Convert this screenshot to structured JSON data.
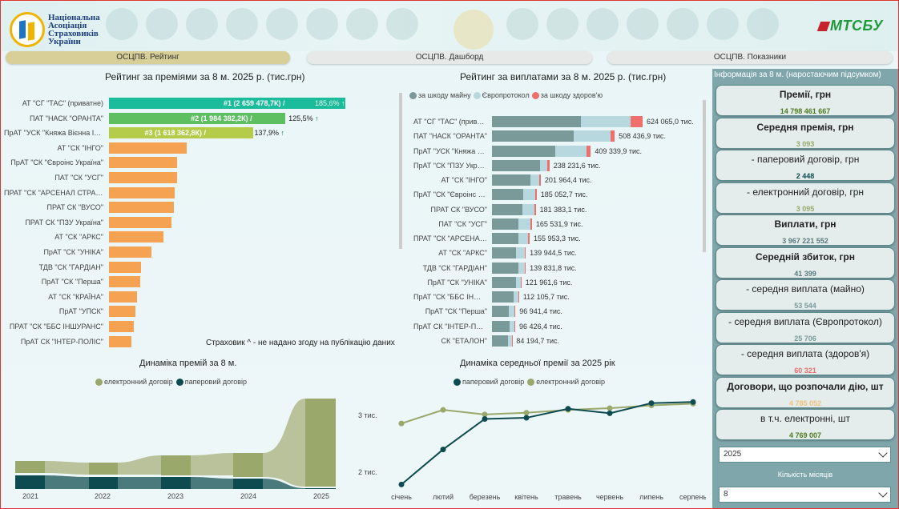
{
  "header": {
    "logo_text": [
      "Національна",
      "Асоціація",
      "Страховиків",
      "України"
    ],
    "brand_right": "МТСБУ"
  },
  "tabs": [
    {
      "label": "ОСЦПВ. Рейтинг",
      "active": true
    },
    {
      "label": "ОСЦПВ. Дашборд",
      "active": false
    },
    {
      "label": "ОСЦПВ. Показники",
      "active": false
    }
  ],
  "premiums_chart": {
    "title": "Рейтинг за преміями за 8 м.  2025 р. (тис.грн)",
    "items": [
      {
        "name": "АТ \"СГ \"ТАС\" (приватне)",
        "value": 2659478.7,
        "label": "#1 (2 659 478,7К) /",
        "pct": "185,6%",
        "color": "#1abc9c"
      },
      {
        "name": "ПАТ \"НАСК \"ОРАНТА\"",
        "value": 1984382.2,
        "label": "#2 (1 984 382,2К) /",
        "pct": "125,5%",
        "color": "#5dbf60"
      },
      {
        "name": "ПрАТ \"УСК \"Княжа Вієнна Іншуранс Груп\"",
        "value": 1618362.8,
        "label": "#3 (1 618 362,8К) /",
        "pct": "137,9%",
        "color": "#b5cc4a"
      },
      {
        "name": "АТ \"СК \"ІНГО\"",
        "value": 875000,
        "color": "#f5a352"
      },
      {
        "name": "ПрАТ \"СК \"Євроінс Україна\"",
        "value": 770000,
        "color": "#f5a352"
      },
      {
        "name": "ПАТ \"СК \"УСГ\"",
        "value": 765000,
        "color": "#f5a352"
      },
      {
        "name": "ПРАТ \"СК \"АРСЕНАЛ СТРАХУВАННЯ\"",
        "value": 735000,
        "color": "#f5a352"
      },
      {
        "name": "ПРАТ СК \"ВУСО\"",
        "value": 730000,
        "color": "#f5a352"
      },
      {
        "name": "ПРАТ СК \"ПЗУ Україна\"",
        "value": 700000,
        "color": "#f5a352"
      },
      {
        "name": "АТ \"СК \"АРКС\"",
        "value": 610000,
        "color": "#f5a352"
      },
      {
        "name": "ПрАТ \"СК \"УНІКА\"",
        "value": 475000,
        "color": "#f5a352"
      },
      {
        "name": "ТДВ \"СК \"ГАРДІАН\"",
        "value": 365000,
        "color": "#f5a352"
      },
      {
        "name": "ПрАТ \"СК \"Перша\"",
        "value": 350000,
        "color": "#f5a352"
      },
      {
        "name": "АТ \"СК \"КРАЇНА\"",
        "value": 315000,
        "color": "#f5a352"
      },
      {
        "name": "ПрАТ \"УПСК\"",
        "value": 300000,
        "color": "#f5a352"
      },
      {
        "name": "ПРАТ \"СК \"ББС ІНШУРАНС\"",
        "value": 280000,
        "color": "#f5a352"
      },
      {
        "name": "ПрАТ СК \"ІНТЕР-ПОЛІС\"",
        "value": 255000,
        "color": "#f5a352"
      }
    ],
    "note": "Страховик ^ - не надано згоду на публікацію даних",
    "max": 2659478.7
  },
  "payouts_chart": {
    "title": "Рейтинг за виплатами за 8 м.  2025 р. (тис.грн)",
    "legend": [
      {
        "label": "за шкоду майну",
        "color": "#7a9a9a"
      },
      {
        "label": "Європротокол",
        "color": "#b7d8de"
      },
      {
        "label": "за шкоду здоров'ю",
        "color": "#ef6f6c"
      }
    ],
    "items": [
      {
        "name": "АТ \"СГ \"ТАС\" (приватне)",
        "total": "624 065,0 тис.",
        "parts": [
          370000,
          205000,
          49065
        ]
      },
      {
        "name": "ПАТ \"НАСК \"ОРАНТА\"",
        "total": "508 436,9 тис.",
        "parts": [
          340000,
          150000,
          18437
        ]
      },
      {
        "name": "ПрАТ \"УСК \"Княжа Вієнна Іншуранс Груп\"",
        "total": "409 339,9 тис.",
        "parts": [
          263000,
          128000,
          18340
        ]
      },
      {
        "name": "ПрАТ \"СК \"ПЗУ Україна\"",
        "total": "238 231,6 тис.",
        "parts": [
          198000,
          30000,
          10232
        ]
      },
      {
        "name": "АТ \"СК \"ІНГО\"",
        "total": "201 964,4 тис.",
        "parts": [
          160000,
          35000,
          6964
        ]
      },
      {
        "name": "ПрАТ \"СК \"Євроінс Україна\"",
        "total": "185 052,7 тис.",
        "parts": [
          130000,
          48000,
          7053
        ]
      },
      {
        "name": "ПРАТ СК \"ВУСО\"",
        "total": "181 383,1 тис.",
        "parts": [
          126000,
          50000,
          5383
        ]
      },
      {
        "name": "ПАТ \"СК \"УСГ\"",
        "total": "165 531,9 тис.",
        "parts": [
          110000,
          49000,
          6532
        ]
      },
      {
        "name": "ПРАТ \"СК \"АРСЕНАЛ СТРАХУВАННЯ\"",
        "total": "155 953,3 тис.",
        "parts": [
          108000,
          43000,
          4953
        ]
      },
      {
        "name": "АТ \"СК \"АРКС\"",
        "total": "139 944,5 тис.",
        "parts": [
          100000,
          36000,
          3945
        ]
      },
      {
        "name": "ТДВ \"СК \"ГАРДІАН\"",
        "total": "139 831,8 тис.",
        "parts": [
          110000,
          26000,
          3832
        ]
      },
      {
        "name": "ПрАТ \"СК \"УНІКА\"",
        "total": "121 961,6 тис.",
        "parts": [
          98000,
          20000,
          3962
        ]
      },
      {
        "name": "ПрАТ \"СК \"ББС ІНШУРАНС\"",
        "total": "112 105,7 тис.",
        "parts": [
          88000,
          21000,
          3106
        ]
      },
      {
        "name": "ПрАТ \"СК \"Перша\"",
        "total": "96 941,4 тис.",
        "parts": [
          70000,
          24000,
          2941
        ]
      },
      {
        "name": "ПрАТ СК \"ІНТЕР-ПОЛІС\"",
        "total": "96 426,4 тис.",
        "parts": [
          72000,
          21500,
          2926
        ]
      },
      {
        "name": "СК \"ЕТАЛОН\"",
        "total": "84 194,7 тис.",
        "parts": [
          66000,
          16000,
          2195
        ]
      }
    ],
    "max": 624065
  },
  "dynamics_chart": {
    "title": "Динаміка премій за 8 м.",
    "legend": [
      {
        "label": "електронний договір",
        "color": "#9aa86b"
      },
      {
        "label": "паперовий договір",
        "color": "#0d4b50"
      }
    ],
    "years": [
      "2021",
      "2022",
      "2023",
      "2024",
      "2025"
    ]
  },
  "avg_premium_chart": {
    "title": "Динаміка середньої премії за 2025 рік",
    "legend": [
      {
        "label": "паперовий договір",
        "color": "#0d4b50"
      },
      {
        "label": "електронний договір",
        "color": "#9aa86b"
      }
    ],
    "months": [
      "січень",
      "лютий",
      "березень",
      "квітень",
      "травень",
      "червень",
      "липень",
      "серпень"
    ],
    "y_ticks": [
      {
        "label": "3 тис.",
        "value": 3000
      },
      {
        "label": "2 тис.",
        "value": 2000
      }
    ],
    "ylim": [
      1700,
      3400
    ],
    "paper": [
      1780,
      2400,
      2940,
      2960,
      3120,
      3040,
      3220,
      3240
    ],
    "electronic": [
      2860,
      3100,
      3020,
      3050,
      3100,
      3130,
      3180,
      3210
    ]
  },
  "sidebar": {
    "header": "Інформація за 8 м. (наростаючим підсумком)",
    "kpis": [
      {
        "label": "Премії, грн",
        "value": "14 798 461 667",
        "bold": true,
        "color": "#4d7a1e"
      },
      {
        "label": "Середня премія, грн",
        "value": "3 093",
        "bold": true,
        "color": "#9aa86b"
      },
      {
        "label": "- паперовий договір, грн",
        "value": "2 448",
        "bold": false,
        "color": "#0d4b50"
      },
      {
        "label": "- електронний договір, грн",
        "value": "3 095",
        "bold": false,
        "color": "#9aa86b"
      },
      {
        "label": "Виплати, грн",
        "value": "3 967 221 552",
        "bold": true,
        "color": "#5b7b7e"
      },
      {
        "label": "Середній збиток, грн",
        "value": "41 399",
        "bold": true,
        "color": "#5b7b7e"
      },
      {
        "label": "- середня виплата (майно)",
        "value": "53 544",
        "bold": false,
        "color": "#7a9a9a"
      },
      {
        "label": "- середня виплата (Європротокол)",
        "value": "25 706",
        "bold": false,
        "color": "#7a9a9a"
      },
      {
        "label": "- середня виплата (здоров'я)",
        "value": "60 321",
        "bold": false,
        "color": "#ef6f6c"
      },
      {
        "label": "Договори, що розпочали дію, шт",
        "value": "4 785 052",
        "bold": true,
        "color": "#f0c27a"
      },
      {
        "label": "в т.ч. електронні, шт",
        "value": "4 769 007",
        "bold": false,
        "color": "#4d7a1e"
      }
    ],
    "year_select": "2025",
    "months_label": "Кількість місяців",
    "months_select": "8"
  }
}
